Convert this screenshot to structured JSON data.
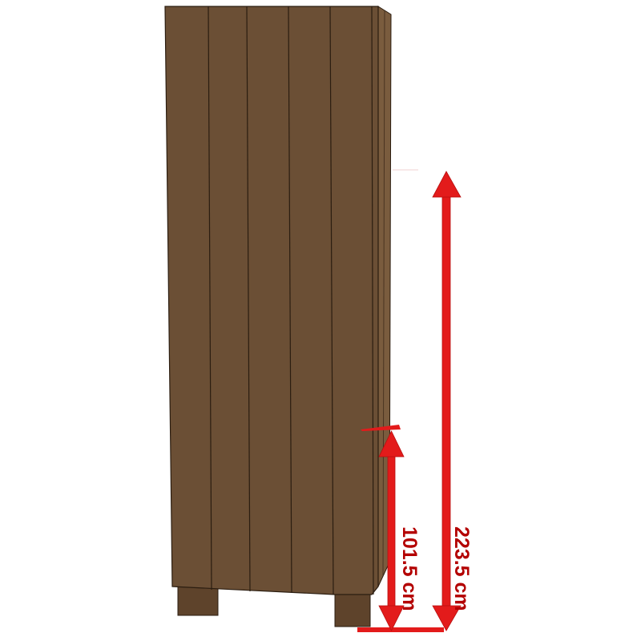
{
  "dimensions": {
    "height_total": "223.5 cm",
    "height_lower": "101.5 cm"
  },
  "colors": {
    "wood": "#6b4f35",
    "wood_dark": "#5e432b",
    "wood_side": "#7a5c3e",
    "plank_line": "#2b1d10",
    "arrow": "#e31b1b",
    "label": "#b30000"
  }
}
